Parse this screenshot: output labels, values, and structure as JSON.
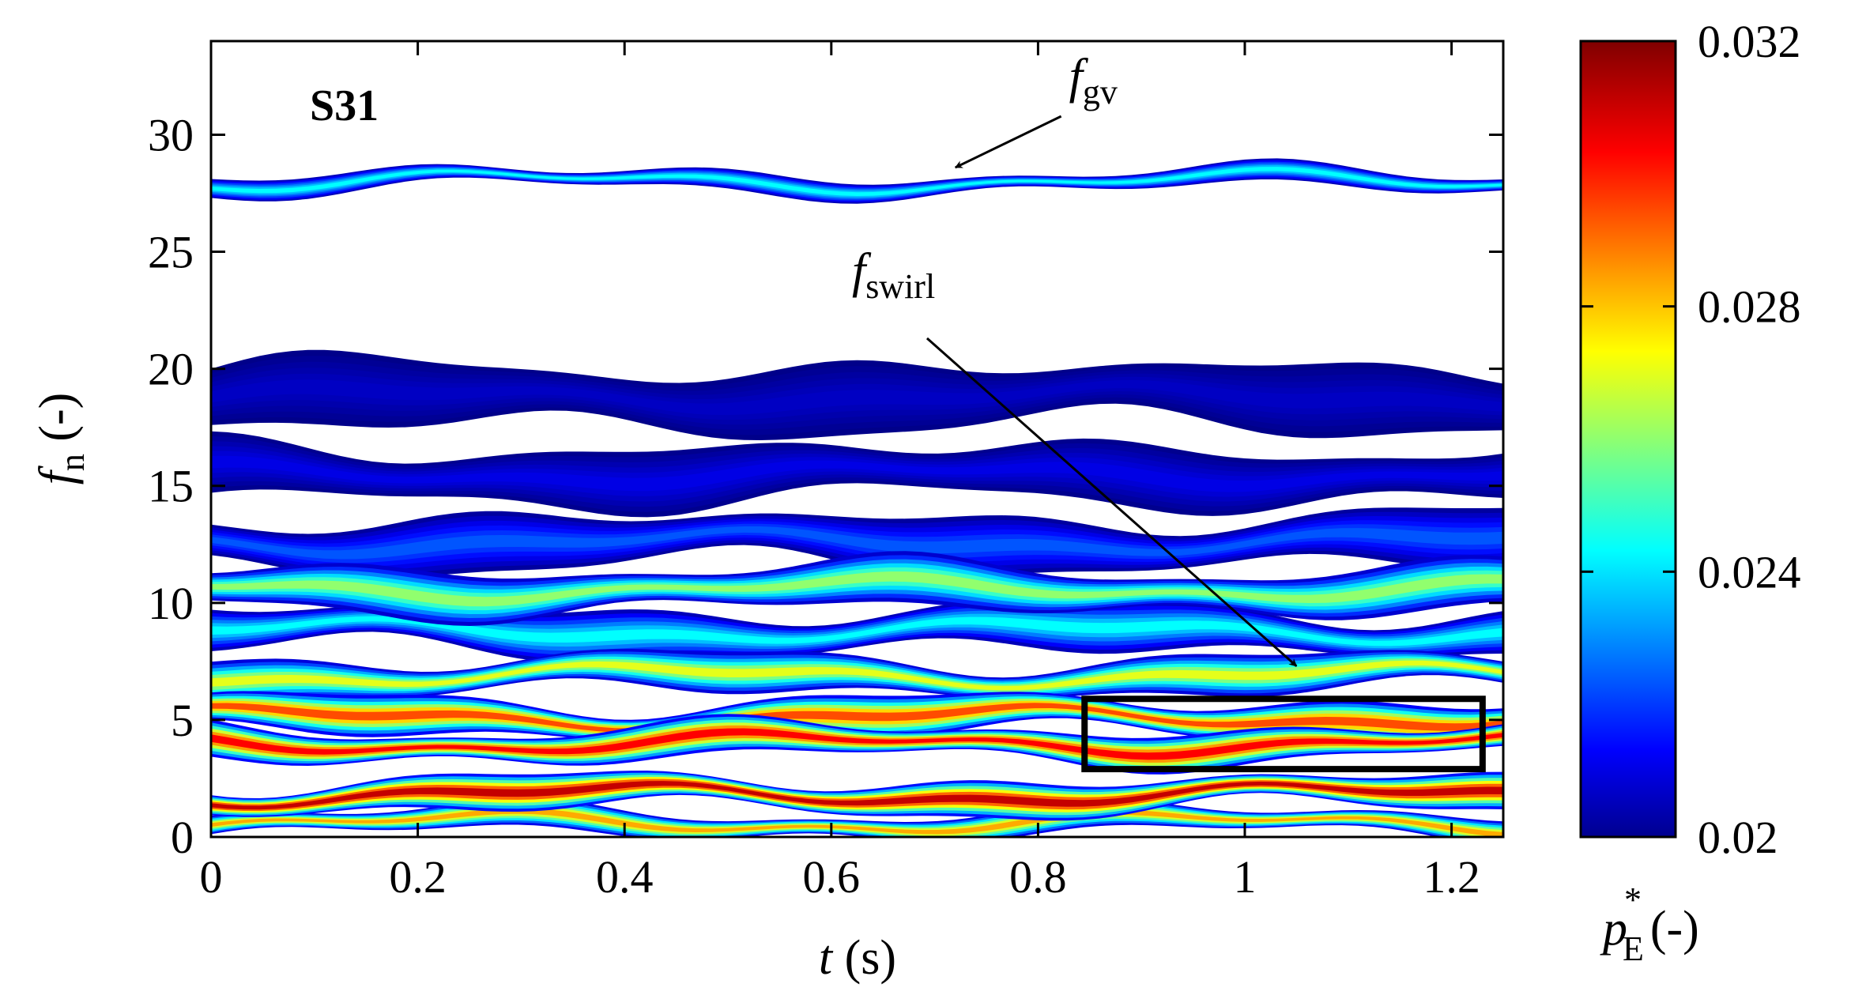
{
  "chart_data": {
    "type": "heatmap",
    "panel_label": "S31",
    "x_axis": {
      "symbol": "t",
      "unit": "(s)",
      "range": [
        0,
        1.25
      ],
      "ticks": [
        0,
        0.2,
        0.4,
        0.6,
        0.8,
        1,
        1.2
      ],
      "tick_labels": [
        "0",
        "0.2",
        "0.4",
        "0.6",
        "0.8",
        "1",
        "1.2"
      ]
    },
    "y_axis": {
      "symbol": "f",
      "subscript": "n",
      "unit": "(-)",
      "range": [
        0,
        34
      ],
      "ticks": [
        0,
        5,
        10,
        15,
        20,
        25,
        30
      ],
      "tick_labels": [
        "0",
        "5",
        "10",
        "15",
        "20",
        "25",
        "30"
      ]
    },
    "colorbar": {
      "symbol": "p",
      "superscript": "*",
      "subscript": "E",
      "unit": "(-)",
      "range": [
        0.02,
        0.032
      ],
      "ticks": [
        0.02,
        0.024,
        0.028,
        0.032
      ],
      "tick_labels": [
        "0.02",
        "0.024",
        "0.028",
        "0.032"
      ],
      "colormap": "jet"
    },
    "threshold_white_below": 0.02,
    "bands": [
      {
        "f_center": 28.0,
        "f_halfwidth": 0.45,
        "peak_value": 0.0245,
        "note": "guide vane band"
      },
      {
        "f_center": 18.8,
        "f_halfwidth": 1.6,
        "peak_value": 0.0208
      },
      {
        "f_center": 15.5,
        "f_halfwidth": 1.4,
        "peak_value": 0.0212
      },
      {
        "f_center": 12.6,
        "f_halfwidth": 1.3,
        "peak_value": 0.0225
      },
      {
        "f_center": 10.6,
        "f_halfwidth": 1.1,
        "peak_value": 0.0262
      },
      {
        "f_center": 8.8,
        "f_halfwidth": 1.1,
        "peak_value": 0.0245
      },
      {
        "f_center": 6.9,
        "f_halfwidth": 0.9,
        "peak_value": 0.0272
      },
      {
        "f_center": 5.1,
        "f_halfwidth": 0.9,
        "peak_value": 0.0296
      },
      {
        "f_center": 4.0,
        "f_halfwidth": 0.8,
        "peak_value": 0.0305
      },
      {
        "f_center": 1.8,
        "f_halfwidth": 0.8,
        "peak_value": 0.0312
      },
      {
        "f_center": 0.6,
        "f_halfwidth": 0.6,
        "peak_value": 0.0285
      }
    ],
    "annotations": [
      {
        "symbol": "f",
        "subscript": "gv",
        "points_to": {
          "t": 0.72,
          "f": 28.6
        },
        "label_at": {
          "t": 0.83,
          "f": 31.8
        }
      },
      {
        "symbol": "f",
        "subscript": "swirl",
        "points_to": {
          "t": 1.05,
          "f": 7.3
        },
        "label_at": {
          "t": 0.62,
          "f": 23.5
        }
      }
    ],
    "highlight_box": {
      "t_range": [
        0.845,
        1.23
      ],
      "f_range": [
        2.9,
        5.9
      ]
    }
  }
}
